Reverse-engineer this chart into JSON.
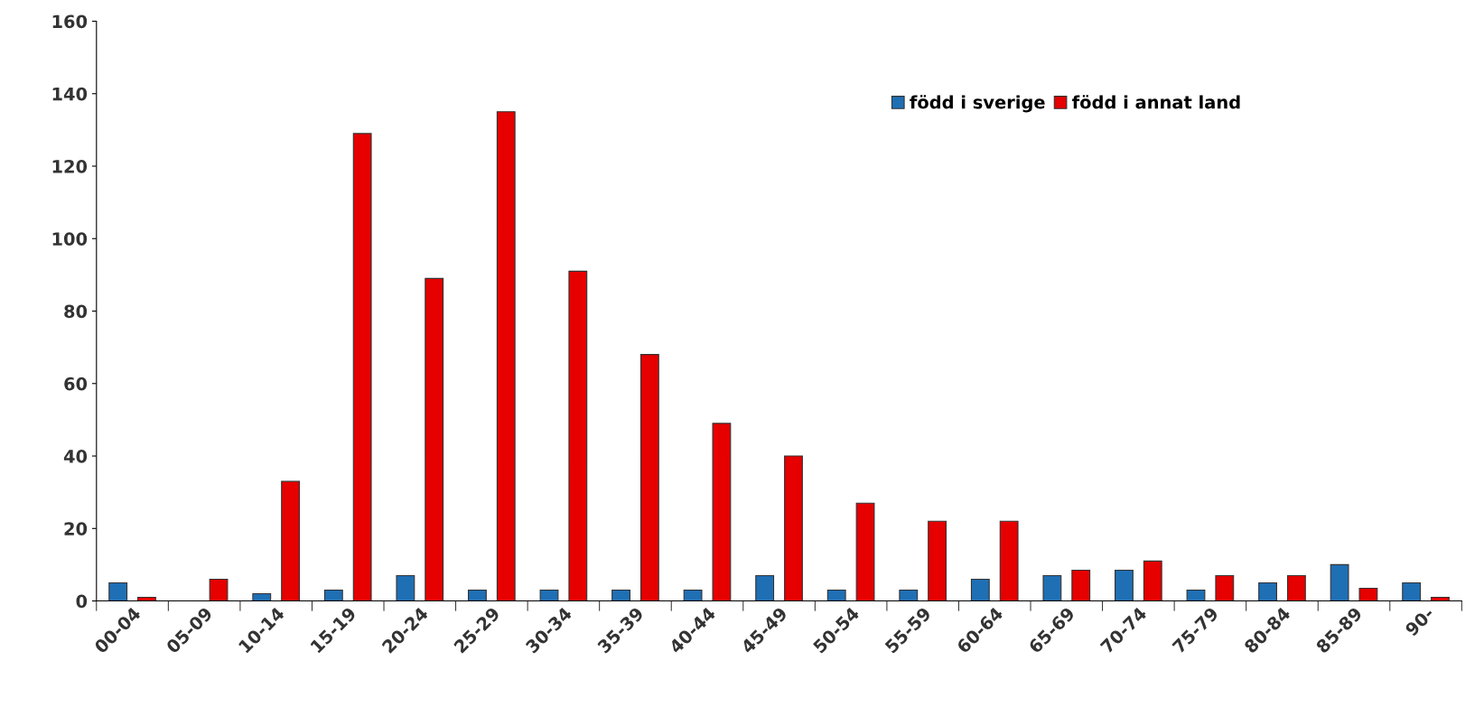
{
  "chart_data": {
    "type": "bar",
    "categories": [
      "00-04",
      "05-09",
      "10-14",
      "15-19",
      "20-24",
      "25-29",
      "30-34",
      "35-39",
      "40-44",
      "45-49",
      "50-54",
      "55-59",
      "60-64",
      "65-69",
      "70-74",
      "75-79",
      "80-84",
      "85-89",
      "90-"
    ],
    "series": [
      {
        "name": "född i sverige",
        "color": "#1f6fb4",
        "values": [
          5,
          null,
          2,
          3,
          7,
          3,
          3,
          3,
          3,
          7,
          3,
          3,
          6,
          7,
          8.5,
          3,
          5,
          10,
          5
        ]
      },
      {
        "name": "född i annat land",
        "color": "#e60000",
        "values": [
          1,
          6,
          33,
          129,
          89,
          135,
          91,
          68,
          49,
          40,
          27,
          22,
          22,
          8.5,
          11,
          7,
          7,
          3.5,
          1
        ]
      }
    ],
    "ylim": [
      0,
      160
    ],
    "yticks": [
      0,
      20,
      40,
      60,
      80,
      100,
      120,
      140,
      160
    ],
    "grid": false,
    "legend": "top right"
  }
}
